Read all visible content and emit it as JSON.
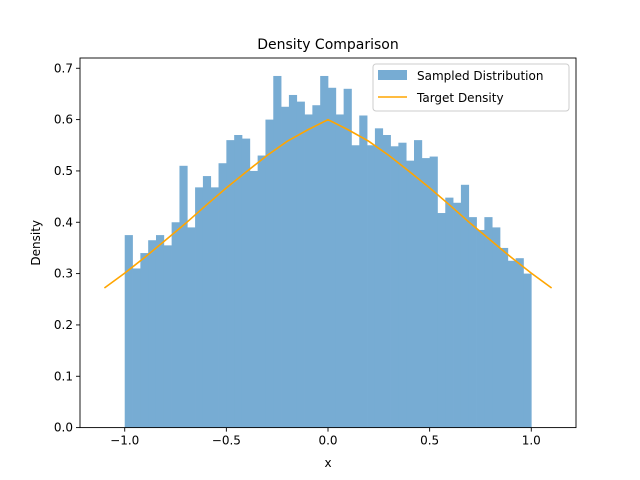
{
  "chart_data": {
    "type": "bar",
    "title": "Density Comparison",
    "xlabel": "x",
    "ylabel": "Density",
    "xlim": [
      -1.22,
      1.22
    ],
    "ylim": [
      0.0,
      0.72
    ],
    "xticks": [
      -1.0,
      -0.5,
      0.0,
      0.5,
      1.0
    ],
    "xtick_labels": [
      "−1.0",
      "−0.5",
      "0.0",
      "0.5",
      "1.0"
    ],
    "yticks": [
      0.0,
      0.1,
      0.2,
      0.3,
      0.4,
      0.5,
      0.6,
      0.7
    ],
    "ytick_labels": [
      "0.0",
      "0.1",
      "0.2",
      "0.3",
      "0.4",
      "0.5",
      "0.6",
      "0.7"
    ],
    "grid": false,
    "legend_position": "top-right",
    "colors": {
      "histogram": "#77acd3",
      "target": "#ffa500"
    },
    "series": [
      {
        "name": "Sampled Distribution",
        "kind": "histogram",
        "bin_range": [
          -1.0,
          1.0
        ],
        "values": [
          0.375,
          0.31,
          0.34,
          0.365,
          0.375,
          0.355,
          0.4,
          0.51,
          0.39,
          0.468,
          0.49,
          0.468,
          0.515,
          0.56,
          0.57,
          0.563,
          0.5,
          0.53,
          0.6,
          0.685,
          0.625,
          0.648,
          0.635,
          0.61,
          0.628,
          0.685,
          0.662,
          0.61,
          0.66,
          0.55,
          0.608,
          0.55,
          0.583,
          0.57,
          0.548,
          0.555,
          0.52,
          0.56,
          0.525,
          0.528,
          0.418,
          0.448,
          0.438,
          0.473,
          0.41,
          0.385,
          0.41,
          0.39,
          0.35,
          0.325,
          0.33,
          0.3
        ]
      },
      {
        "name": "Target Density",
        "kind": "line",
        "x": [
          -1.1,
          -1.0,
          -0.9,
          -0.8,
          -0.7,
          -0.6,
          -0.5,
          -0.4,
          -0.3,
          -0.2,
          -0.1,
          0.0,
          0.1,
          0.2,
          0.3,
          0.4,
          0.5,
          0.6,
          0.7,
          0.8,
          0.9,
          1.0,
          1.1
        ],
        "y": [
          0.272,
          0.301,
          0.332,
          0.365,
          0.398,
          0.433,
          0.467,
          0.499,
          0.53,
          0.558,
          0.58,
          0.6,
          0.58,
          0.558,
          0.53,
          0.499,
          0.467,
          0.433,
          0.398,
          0.365,
          0.332,
          0.301,
          0.272
        ]
      }
    ]
  }
}
